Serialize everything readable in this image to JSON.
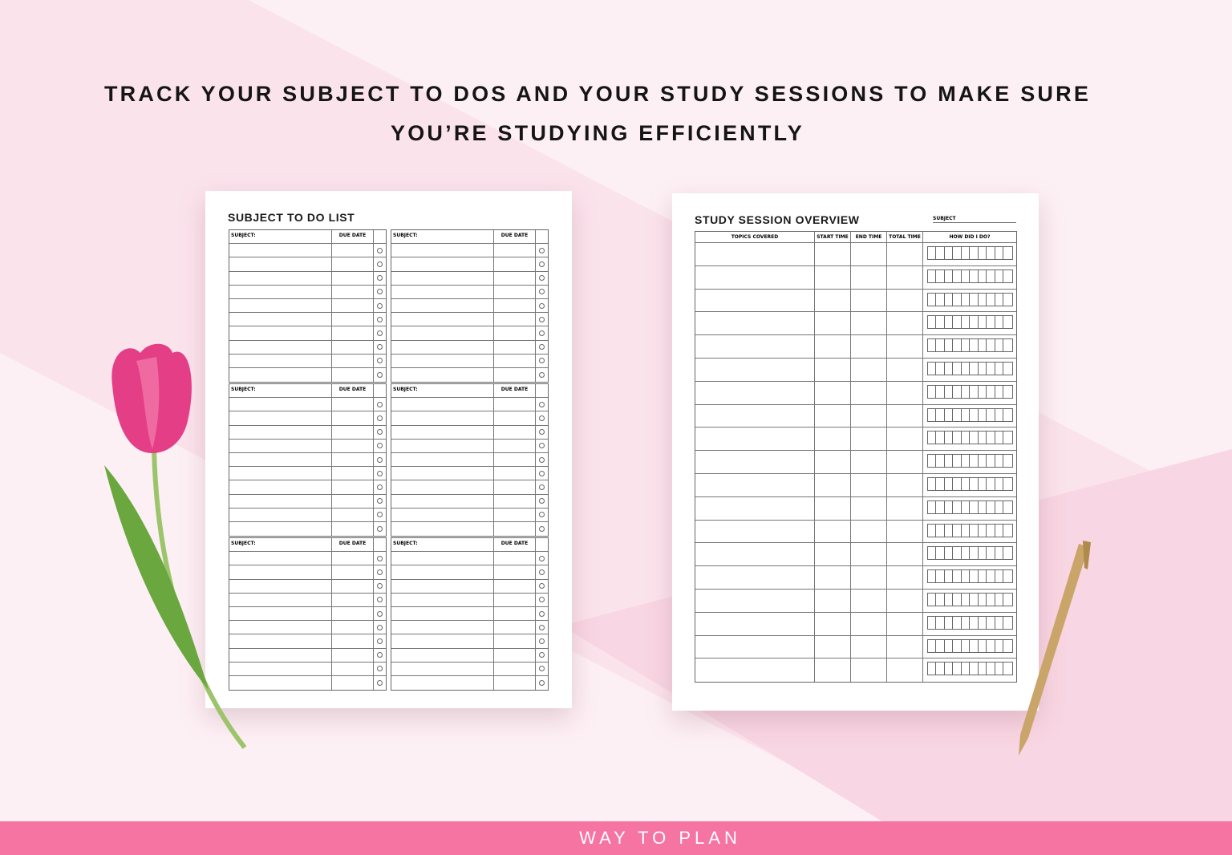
{
  "headline": {
    "line1": "TRACK YOUR SUBJECT TO DOS AND YOUR STUDY SESSIONS TO MAKE SURE",
    "line2": "YOU’RE STUDYING EFFICIENTLY"
  },
  "todo_page": {
    "title": "SUBJECT TO DO LIST",
    "subject_label": "SUBJECT:",
    "due_label": "DUE DATE",
    "blocks": 6,
    "rows_per_block": 10
  },
  "session_page": {
    "title": "STUDY SESSION OVERVIEW",
    "subject_label": "SUBJECT",
    "columns": [
      "TOPICS COVERED",
      "START TIME",
      "END TIME",
      "TOTAL TIME",
      "HOW DID I DO?"
    ],
    "rows": 19,
    "rating_boxes": 10
  },
  "footer": {
    "brand": "WAY TO PLAN"
  },
  "colors": {
    "background": "#fbe3ec",
    "footer": "#f674a2"
  }
}
